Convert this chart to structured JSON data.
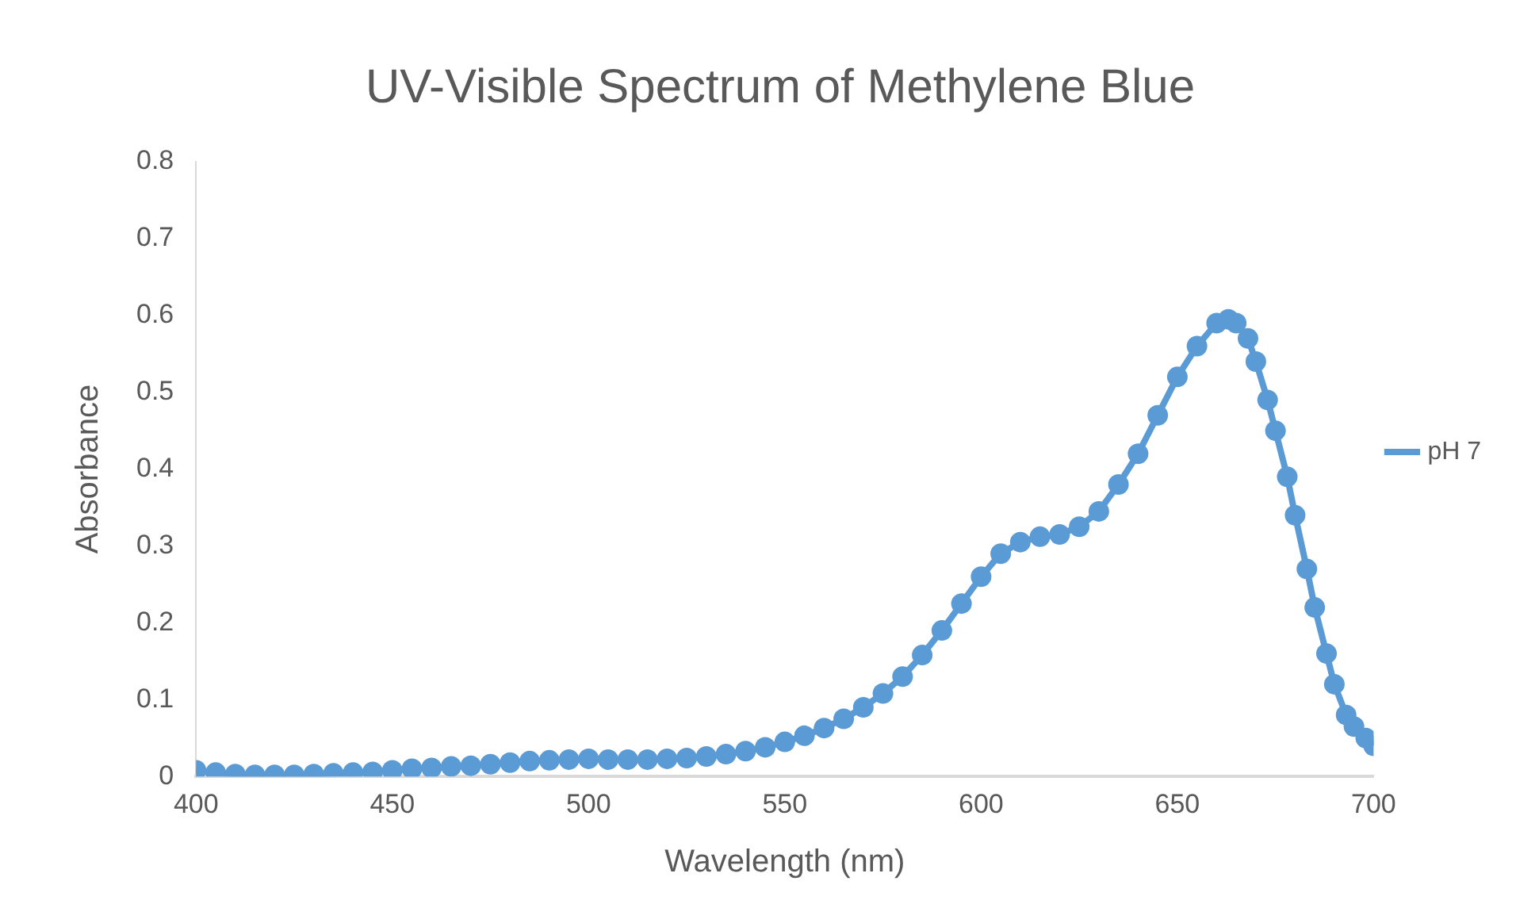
{
  "chart_data": {
    "type": "line",
    "title": "UV-Visible Spectrum of Methylene Blue",
    "xlabel": "Wavelength (nm)",
    "ylabel": "Absorbance",
    "x": [
      400,
      405,
      410,
      415,
      420,
      425,
      430,
      435,
      440,
      445,
      450,
      455,
      460,
      465,
      470,
      475,
      480,
      485,
      490,
      495,
      500,
      505,
      510,
      515,
      520,
      525,
      530,
      535,
      540,
      545,
      550,
      555,
      560,
      565,
      570,
      575,
      580,
      585,
      590,
      595,
      600,
      605,
      610,
      615,
      620,
      625,
      630,
      635,
      640,
      645,
      650,
      655,
      660,
      663,
      665,
      668,
      670,
      673,
      675,
      678,
      680,
      683,
      685,
      688,
      690,
      693,
      695,
      698,
      700
    ],
    "series": [
      {
        "name": "pH 7",
        "color": "#5b9bd5",
        "values": [
          0.008,
          0.005,
          0.003,
          0.002,
          0.002,
          0.002,
          0.003,
          0.004,
          0.005,
          0.006,
          0.008,
          0.01,
          0.011,
          0.013,
          0.014,
          0.016,
          0.018,
          0.02,
          0.021,
          0.022,
          0.023,
          0.022,
          0.022,
          0.022,
          0.023,
          0.024,
          0.026,
          0.029,
          0.033,
          0.038,
          0.045,
          0.053,
          0.063,
          0.075,
          0.09,
          0.108,
          0.13,
          0.158,
          0.19,
          0.225,
          0.26,
          0.29,
          0.305,
          0.312,
          0.315,
          0.325,
          0.345,
          0.38,
          0.42,
          0.47,
          0.52,
          0.56,
          0.59,
          0.595,
          0.59,
          0.57,
          0.54,
          0.49,
          0.45,
          0.39,
          0.34,
          0.27,
          0.22,
          0.16,
          0.12,
          0.08,
          0.065,
          0.05,
          0.04
        ]
      }
    ],
    "xlim": [
      400,
      700
    ],
    "xticks": [
      400,
      450,
      500,
      550,
      600,
      650,
      700
    ],
    "ylim": [
      0,
      0.8
    ],
    "yticks": [
      0,
      0.1,
      0.2,
      0.3,
      0.4,
      0.5,
      0.6,
      0.7,
      0.8
    ],
    "grid": false,
    "legend": "right",
    "marker": "circle",
    "line_style": "solid"
  }
}
